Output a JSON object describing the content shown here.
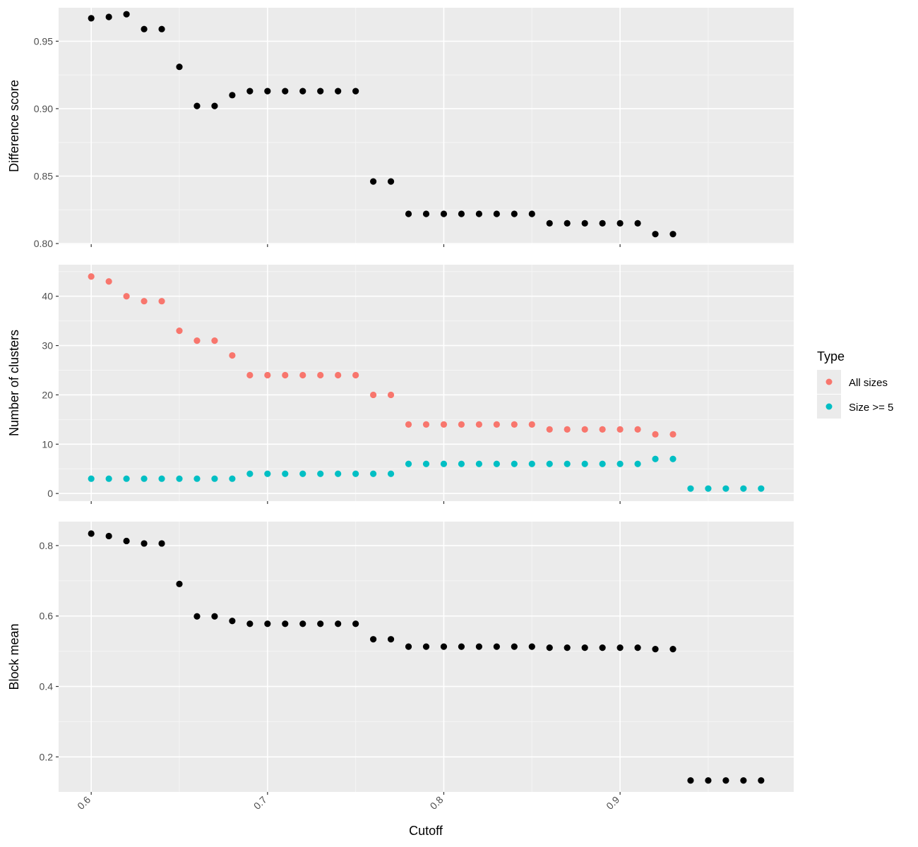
{
  "colors": {
    "panel_bg": "#ebebeb",
    "grid_major": "#ffffff",
    "grid_minor": "#f5f5f5",
    "black_points": "#000000",
    "all_sizes": "#f8766d",
    "size_ge_5": "#00bfc4"
  },
  "chart_data": {
    "type": "scatter",
    "xlabel": "Cutoff",
    "xlim": [
      0.5815,
      0.9985
    ],
    "x_ticks": [
      0.6,
      0.7,
      0.8,
      0.9
    ],
    "x_tick_labels": [
      "0.6",
      "0.7",
      "0.8",
      "0.9"
    ],
    "legend": {
      "title": "Type",
      "placement": "right",
      "entries": [
        {
          "key": "all",
          "label": "All sizes",
          "color": "#f8766d"
        },
        {
          "key": "ge5",
          "label": "Size >= 5",
          "color": "#00bfc4"
        }
      ]
    },
    "panels": [
      {
        "id": "diff",
        "ylabel": "Difference score",
        "ylim": [
          0.7995,
          0.9748
        ],
        "y_ticks": [
          0.8,
          0.85,
          0.9,
          0.95
        ],
        "y_tick_labels": [
          "0.80",
          "0.85",
          "0.90",
          "0.95"
        ],
        "y_minor": [
          0.825,
          0.875,
          0.925
        ],
        "series": [
          {
            "color": "#000000",
            "x": [
              0.6,
              0.61,
              0.62,
              0.63,
              0.64,
              0.65,
              0.66,
              0.67,
              0.68,
              0.69,
              0.7,
              0.71,
              0.72,
              0.73,
              0.74,
              0.75,
              0.76,
              0.77,
              0.78,
              0.79,
              0.8,
              0.81,
              0.82,
              0.83,
              0.84,
              0.85,
              0.86,
              0.87,
              0.88,
              0.89,
              0.9,
              0.91,
              0.92,
              0.93
            ],
            "y": [
              0.967,
              0.968,
              0.97,
              0.959,
              0.959,
              0.931,
              0.902,
              0.902,
              0.91,
              0.913,
              0.913,
              0.913,
              0.913,
              0.913,
              0.913,
              0.913,
              0.846,
              0.846,
              0.822,
              0.822,
              0.822,
              0.822,
              0.822,
              0.822,
              0.822,
              0.822,
              0.815,
              0.815,
              0.815,
              0.815,
              0.815,
              0.815,
              0.807,
              0.807
            ]
          }
        ]
      },
      {
        "id": "clusters",
        "ylabel": "Number of clusters",
        "ylim": [
          -1.55,
          46.4
        ],
        "y_ticks": [
          0,
          10,
          20,
          30,
          40
        ],
        "y_tick_labels": [
          "0",
          "10",
          "20",
          "30",
          "40"
        ],
        "y_minor": [
          5,
          15,
          25,
          35,
          45
        ],
        "series": [
          {
            "name": "All sizes",
            "color": "#f8766d",
            "x": [
              0.6,
              0.61,
              0.62,
              0.63,
              0.64,
              0.65,
              0.66,
              0.67,
              0.68,
              0.69,
              0.7,
              0.71,
              0.72,
              0.73,
              0.74,
              0.75,
              0.76,
              0.77,
              0.78,
              0.79,
              0.8,
              0.81,
              0.82,
              0.83,
              0.84,
              0.85,
              0.86,
              0.87,
              0.88,
              0.89,
              0.9,
              0.91,
              0.92,
              0.93
            ],
            "y": [
              44,
              43,
              40,
              39,
              39,
              33,
              31,
              31,
              28,
              24,
              24,
              24,
              24,
              24,
              24,
              24,
              20,
              20,
              14,
              14,
              14,
              14,
              14,
              14,
              14,
              14,
              13,
              13,
              13,
              13,
              13,
              13,
              12,
              12
            ]
          },
          {
            "name": "Size >= 5",
            "color": "#00bfc4",
            "x": [
              0.6,
              0.61,
              0.62,
              0.63,
              0.64,
              0.65,
              0.66,
              0.67,
              0.68,
              0.69,
              0.7,
              0.71,
              0.72,
              0.73,
              0.74,
              0.75,
              0.76,
              0.77,
              0.78,
              0.79,
              0.8,
              0.81,
              0.82,
              0.83,
              0.84,
              0.85,
              0.86,
              0.87,
              0.88,
              0.89,
              0.9,
              0.91,
              0.92,
              0.93,
              0.94,
              0.95,
              0.96,
              0.97,
              0.98
            ],
            "y": [
              3,
              3,
              3,
              3,
              3,
              3,
              3,
              3,
              3,
              4,
              4,
              4,
              4,
              4,
              4,
              4,
              4,
              4,
              6,
              6,
              6,
              6,
              6,
              6,
              6,
              6,
              6,
              6,
              6,
              6,
              6,
              6,
              7,
              7,
              1,
              1,
              1,
              1,
              1
            ]
          }
        ]
      },
      {
        "id": "block",
        "ylabel": "Block mean",
        "ylim": [
          0.1005,
          0.868
        ],
        "y_ticks": [
          0.2,
          0.4,
          0.6,
          0.8
        ],
        "y_tick_labels": [
          "0.2",
          "0.4",
          "0.6",
          "0.8"
        ],
        "y_minor": [
          0.3,
          0.5,
          0.7
        ],
        "series": [
          {
            "color": "#000000",
            "x": [
              0.6,
              0.61,
              0.62,
              0.63,
              0.64,
              0.65,
              0.66,
              0.67,
              0.68,
              0.69,
              0.7,
              0.71,
              0.72,
              0.73,
              0.74,
              0.75,
              0.76,
              0.77,
              0.78,
              0.79,
              0.8,
              0.81,
              0.82,
              0.83,
              0.84,
              0.85,
              0.86,
              0.87,
              0.88,
              0.89,
              0.9,
              0.91,
              0.92,
              0.93,
              0.94,
              0.95,
              0.96,
              0.97,
              0.98
            ],
            "y": [
              0.834,
              0.827,
              0.813,
              0.806,
              0.806,
              0.691,
              0.599,
              0.599,
              0.586,
              0.578,
              0.578,
              0.578,
              0.578,
              0.578,
              0.578,
              0.578,
              0.534,
              0.534,
              0.513,
              0.513,
              0.513,
              0.513,
              0.513,
              0.513,
              0.513,
              0.513,
              0.51,
              0.51,
              0.51,
              0.51,
              0.51,
              0.51,
              0.506,
              0.506,
              0.133,
              0.133,
              0.133,
              0.133,
              0.133
            ]
          }
        ]
      }
    ]
  }
}
